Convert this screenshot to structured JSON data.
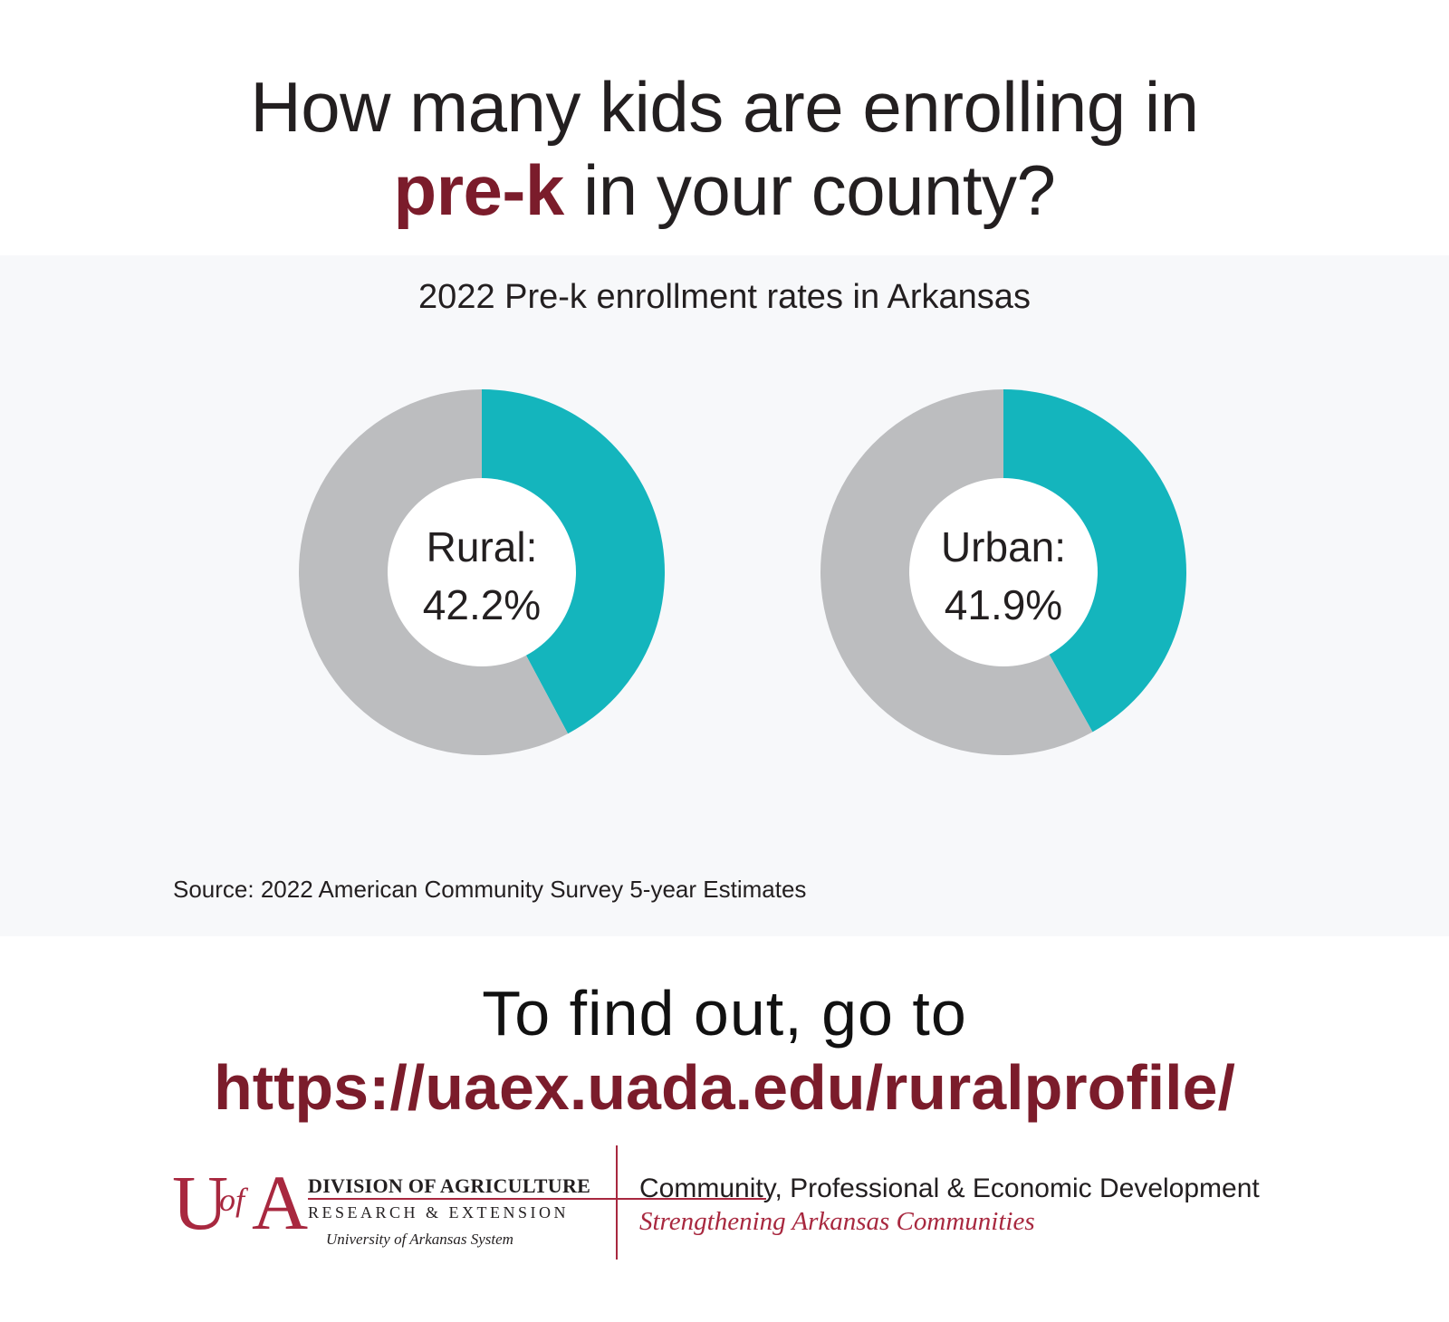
{
  "headline": {
    "line1": "How many kids are enrolling in",
    "accent": "pre-k",
    "line2_rest": " in your county?"
  },
  "source": "Source: 2022 American Community Survey 5-year Estimates",
  "cta": {
    "line1": "To find out, go to",
    "url": "https://uaex.uada.edu/ruralprofile/"
  },
  "footer": {
    "logo_letters": "UofA",
    "division": "DIVISION OF AGRICULTURE",
    "research": "RESEARCH & EXTENSION",
    "system": "University of Arkansas System",
    "org": "Community, Professional & Economic Development",
    "tagline": "Strengthening Arkansas Communities"
  },
  "colors": {
    "accent": "#7b1c2b",
    "enrolled": "#14b5bd",
    "not_enrolled": "#bcbdbf",
    "panel": "#f7f8fa"
  },
  "chart_data": [
    {
      "type": "pie",
      "title": "2022 Pre-k enrollment rates in Arkansas",
      "donut": true,
      "center_label": "Rural:",
      "center_value": "42.2%",
      "slices": [
        {
          "label": "",
          "value": 42.2,
          "color": "#14b5bd"
        },
        {
          "label": "",
          "value": 57.8,
          "color": "#bcbdbf"
        }
      ]
    },
    {
      "type": "pie",
      "title": "2022 Pre-k enrollment rates in Arkansas",
      "donut": true,
      "center_label": "Urban:",
      "center_value": "41.9%",
      "slices": [
        {
          "label": "",
          "value": 41.9,
          "color": "#14b5bd"
        },
        {
          "label": "",
          "value": 58.1,
          "color": "#bcbdbf"
        }
      ]
    }
  ]
}
